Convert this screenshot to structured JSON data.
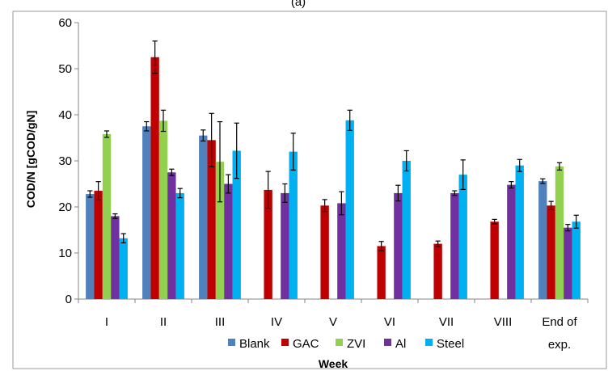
{
  "chart_data": {
    "type": "bar",
    "title": "(a)",
    "xlabel": "Week",
    "ylabel": "COD/N [gCOD/gN]",
    "ylim": [
      0,
      60
    ],
    "yticks": [
      0,
      10,
      20,
      30,
      40,
      50,
      60
    ],
    "grid": false,
    "legend_position": "bottom-center",
    "categories": [
      "I",
      "II",
      "III",
      "IV",
      "V",
      "VI",
      "VII",
      "VIII",
      "End of exp."
    ],
    "series": [
      {
        "name": "Blank",
        "color": "#4F81BD",
        "values": [
          22.8,
          37.5,
          35.5,
          null,
          null,
          null,
          null,
          null,
          25.6
        ],
        "errors": [
          0.7,
          1.0,
          1.2,
          null,
          null,
          null,
          null,
          null,
          0.5
        ]
      },
      {
        "name": "GAC",
        "color": "#C00000",
        "values": [
          23.5,
          52.5,
          34.5,
          23.7,
          20.3,
          11.5,
          12.0,
          16.8,
          20.3
        ],
        "errors": [
          2.0,
          3.5,
          5.8,
          4.0,
          1.3,
          1.0,
          0.6,
          0.5,
          0.9
        ]
      },
      {
        "name": "ZVI",
        "color": "#92D050",
        "values": [
          35.8,
          38.7,
          29.8,
          null,
          null,
          null,
          null,
          null,
          28.8
        ],
        "errors": [
          0.7,
          2.3,
          8.7,
          null,
          null,
          null,
          null,
          null,
          0.8
        ]
      },
      {
        "name": "Al",
        "color": "#7030A0",
        "values": [
          18.0,
          27.5,
          25.0,
          23.0,
          20.8,
          23.0,
          23.0,
          24.8,
          15.5
        ],
        "errors": [
          0.5,
          0.7,
          2.0,
          2.0,
          2.5,
          1.7,
          0.5,
          0.7,
          0.7
        ]
      },
      {
        "name": "Steel",
        "color": "#00B0F0",
        "values": [
          13.2,
          23.0,
          32.2,
          32.0,
          38.8,
          30.0,
          27.0,
          29.0,
          16.8
        ],
        "errors": [
          1.0,
          1.0,
          6.0,
          4.0,
          2.2,
          2.2,
          3.2,
          1.3,
          1.4
        ]
      }
    ]
  }
}
